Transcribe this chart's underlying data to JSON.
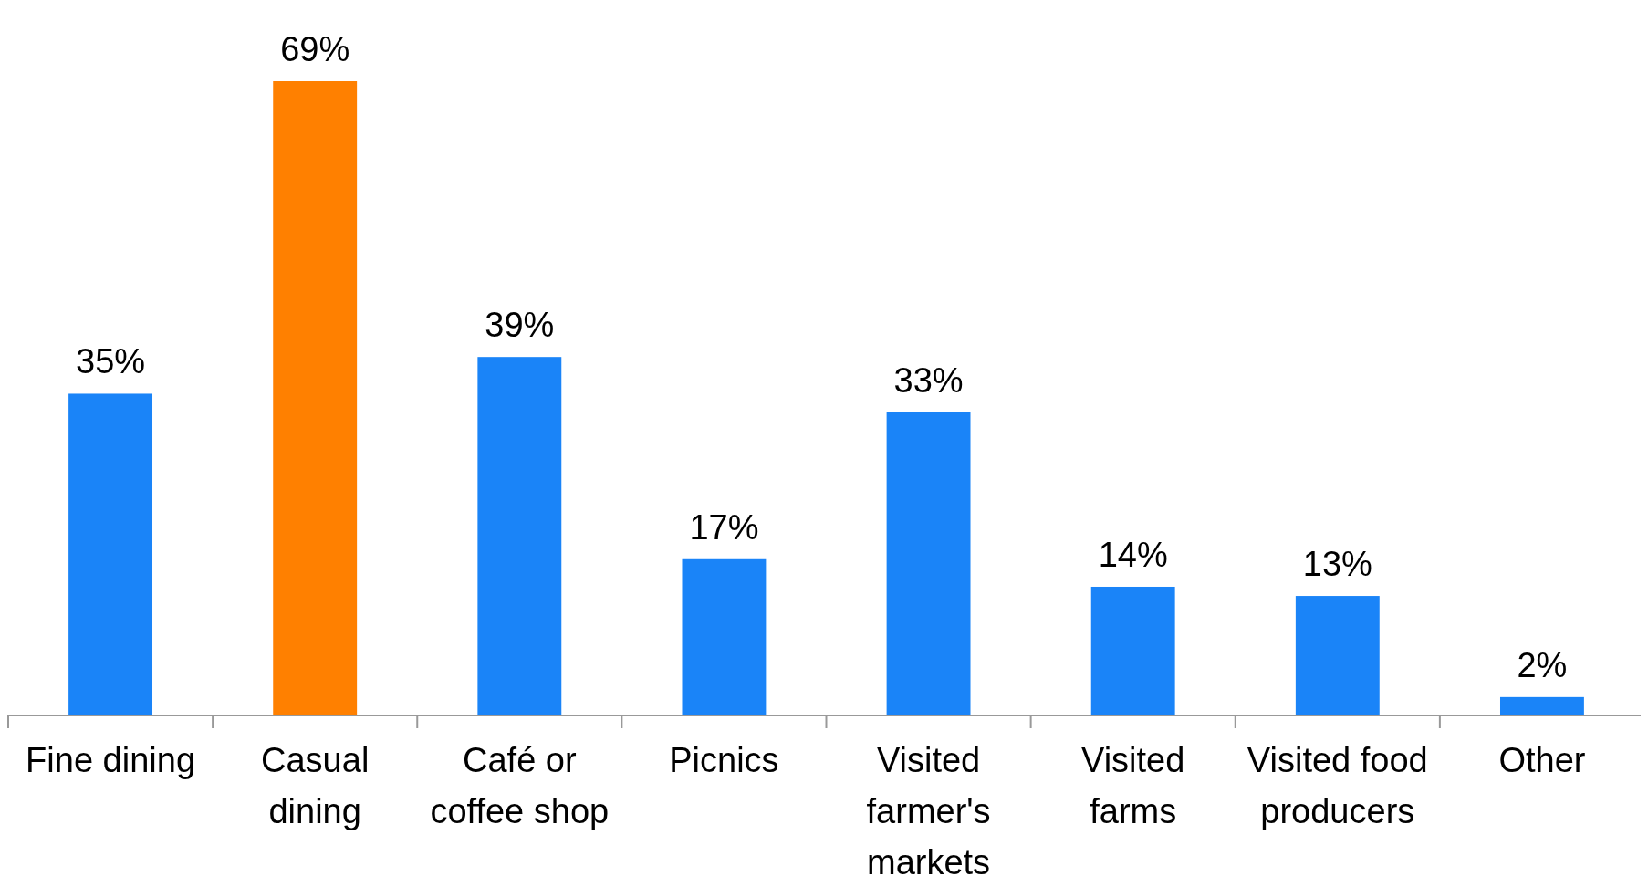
{
  "chart_data": {
    "type": "bar",
    "categories": [
      "Fine dining",
      "Casual dining",
      "Café or coffee shop",
      "Picnics",
      "Visited farmer's markets",
      "Visited farms",
      "Visited food producers",
      "Other"
    ],
    "values": [
      35,
      69,
      39,
      17,
      33,
      14,
      13,
      2
    ],
    "value_labels": [
      "35%",
      "69%",
      "39%",
      "17%",
      "33%",
      "14%",
      "13%",
      "2%"
    ],
    "colors": [
      "#1a84f8",
      "#ff8000",
      "#1a84f8",
      "#1a84f8",
      "#1a84f8",
      "#1a84f8",
      "#1a84f8",
      "#1a84f8"
    ]
  }
}
